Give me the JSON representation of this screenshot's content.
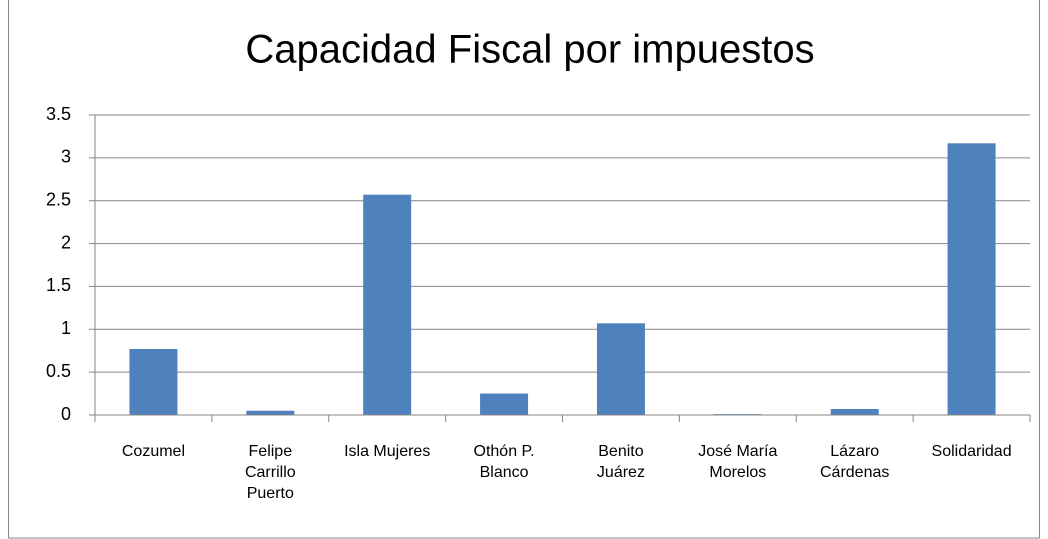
{
  "chart_data": {
    "type": "bar",
    "title": "Capacidad Fiscal por impuestos",
    "categories": [
      "Cozumel",
      "Felipe Carrillo Puerto",
      "Isla Mujeres",
      "Othón P. Blanco",
      "Benito Juárez",
      "José María Morelos",
      "Lázaro Cárdenas",
      "Solidaridad"
    ],
    "values": [
      0.77,
      0.05,
      2.57,
      0.25,
      1.07,
      0.01,
      0.07,
      3.17
    ],
    "color": "#4f81bd",
    "ylim": [
      0,
      3.5
    ],
    "yticks": [
      0,
      0.5,
      1,
      1.5,
      2,
      2.5,
      3,
      3.5
    ],
    "grid": true
  }
}
